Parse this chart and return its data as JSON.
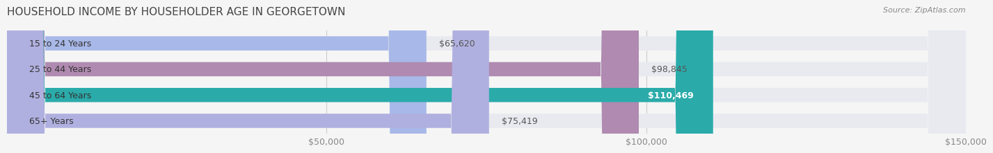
{
  "title": "HOUSEHOLD INCOME BY HOUSEHOLDER AGE IN GEORGETOWN",
  "source": "Source: ZipAtlas.com",
  "categories": [
    "15 to 24 Years",
    "25 to 44 Years",
    "45 to 64 Years",
    "65+ Years"
  ],
  "values": [
    65620,
    98845,
    110469,
    75419
  ],
  "bar_colors": [
    "#a8b8e8",
    "#b08ab0",
    "#2aabaa",
    "#b0b0e0"
  ],
  "bar_bg_color": "#e8eaf0",
  "value_labels": [
    "$65,620",
    "$98,845",
    "$110,469",
    "$75,419"
  ],
  "label_colors": [
    "#555555",
    "#555555",
    "#ffffff",
    "#555555"
  ],
  "xlim": [
    0,
    150000
  ],
  "xticks": [
    50000,
    100000,
    150000
  ],
  "xtick_labels": [
    "$50,000",
    "$100,000",
    "$150,000"
  ],
  "background_color": "#f5f5f5",
  "bar_height": 0.55,
  "title_fontsize": 11,
  "label_fontsize": 9,
  "value_fontsize": 9,
  "source_fontsize": 8
}
